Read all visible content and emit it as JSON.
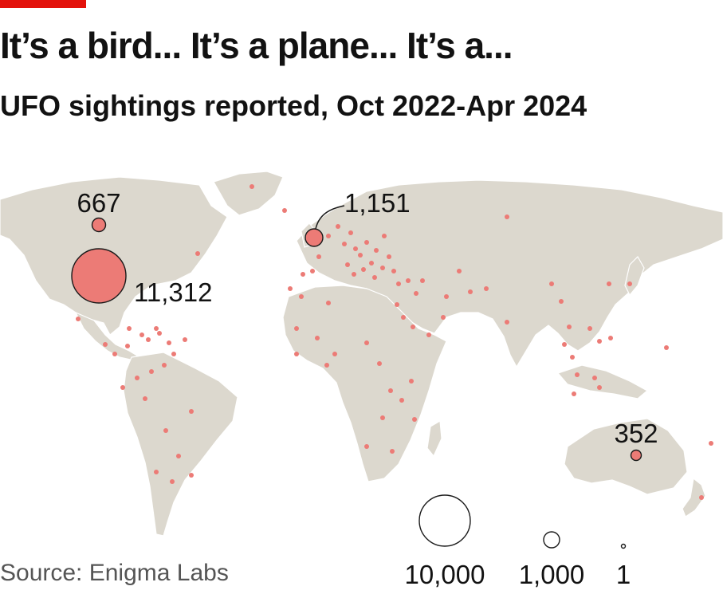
{
  "header": {
    "title": "It’s a bird... It’s a plane... It’s a...",
    "subtitle": "UFO sightings reported, Oct 2022-Apr 2024"
  },
  "colors": {
    "accent": "#e3120b",
    "bubble": "#ec7b76",
    "land": "#dcd8ce"
  },
  "chart_data": {
    "type": "bubble-map",
    "title": "It’s a bird... It’s a plane... It’s a...",
    "subtitle": "UFO sightings reported, Oct 2022-Apr 2024",
    "labelled_points": [
      {
        "label": "11,312",
        "value": 11312
      },
      {
        "label": "1,151",
        "value": 1151
      },
      {
        "label": "667",
        "value": 667
      },
      {
        "label": "352",
        "value": 352
      }
    ],
    "legend": [
      {
        "label": "10,000",
        "value": 10000
      },
      {
        "label": "1,000",
        "value": 1000
      },
      {
        "label": "1",
        "value": 1
      }
    ]
  },
  "footer": {
    "source": "Source: Enigma Labs"
  }
}
